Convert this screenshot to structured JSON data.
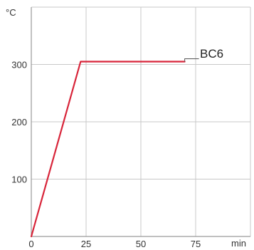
{
  "chart_data": {
    "type": "line",
    "title": "",
    "xlabel": "",
    "ylabel": "",
    "x_unit": "min",
    "y_unit": "°C",
    "xlim": [
      0,
      100
    ],
    "ylim": [
      0,
      400
    ],
    "x_ticks": [
      0,
      25,
      50,
      75
    ],
    "y_ticks": [
      100,
      200,
      300
    ],
    "x_tick_labels": [
      "0",
      "25",
      "50",
      "75"
    ],
    "y_tick_labels": [
      "100",
      "200",
      "300"
    ],
    "grid": true,
    "series": [
      {
        "name": "BC6",
        "color": "#d8253a",
        "x": [
          0,
          22.5,
          70
        ],
        "y": [
          0,
          305,
          305
        ]
      }
    ]
  }
}
